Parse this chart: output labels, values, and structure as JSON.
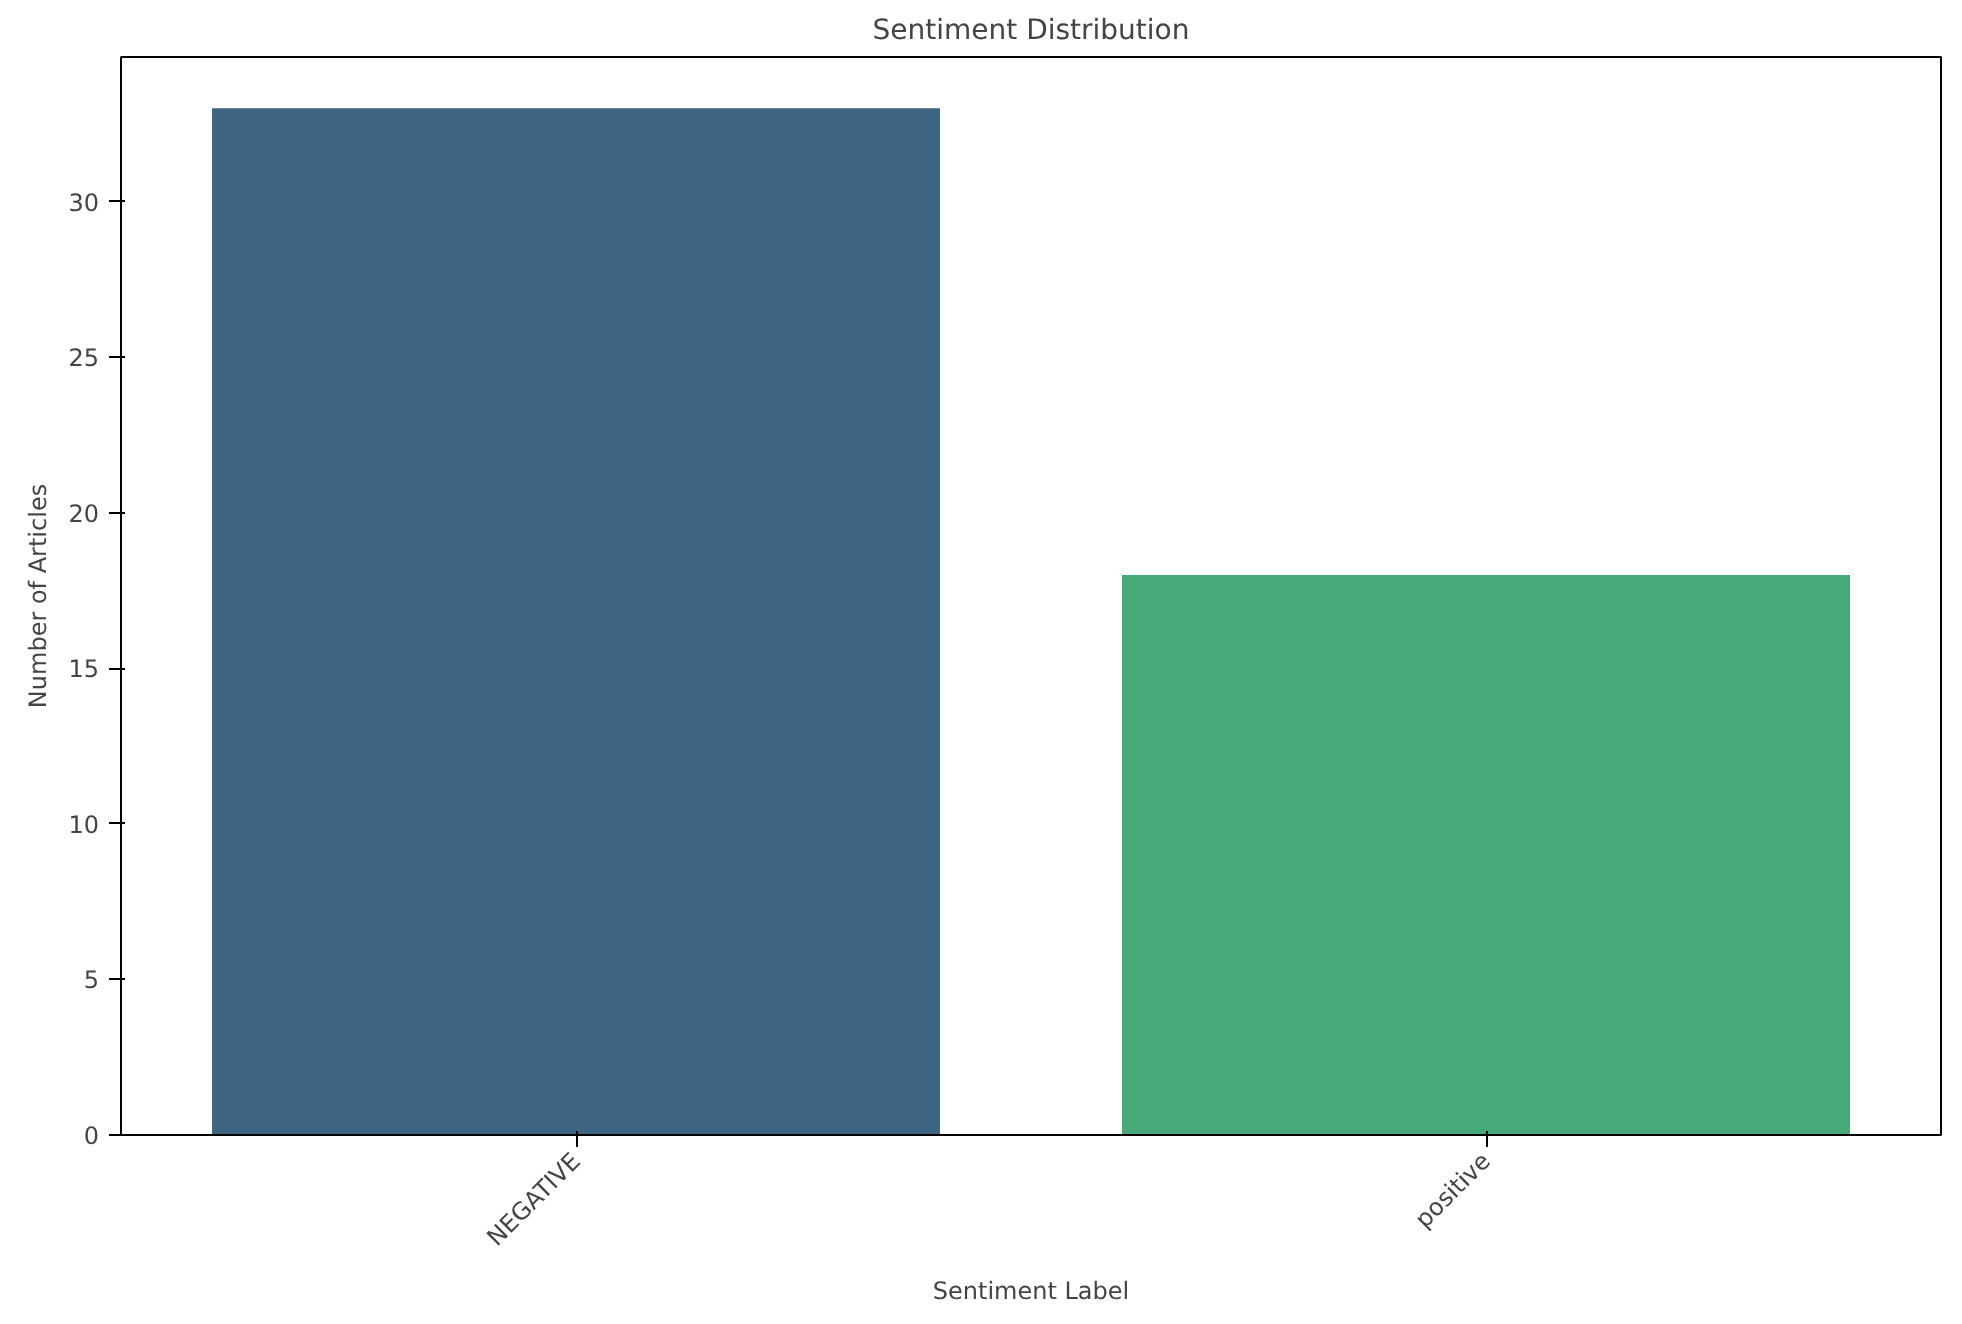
{
  "chart_data": {
    "type": "bar",
    "title": "Sentiment Distribution",
    "xlabel": "Sentiment Label",
    "ylabel": "Number of Articles",
    "categories": [
      "NEGATIVE",
      "positive"
    ],
    "values": [
      33,
      18
    ],
    "colors": [
      "#3d6480",
      "#47a878"
    ],
    "ylim": [
      0,
      34.65
    ],
    "yticks": [
      0,
      5,
      10,
      15,
      20,
      25,
      30
    ],
    "grid": false
  }
}
